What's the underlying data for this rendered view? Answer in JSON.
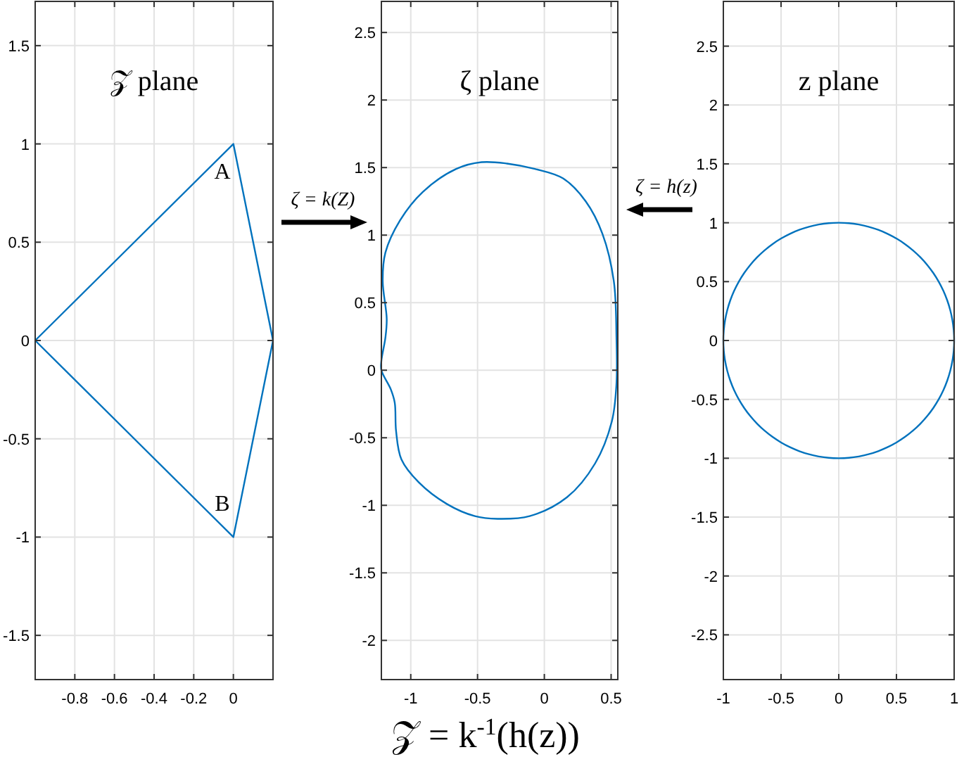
{
  "chart_data": [
    {
      "type": "line",
      "title": "𝒵 plane",
      "xlim": [
        -1,
        0.2
      ],
      "ylim": [
        -1.725,
        1.725
      ],
      "xticks": [
        -0.8,
        -0.6,
        -0.4,
        -0.2,
        0
      ],
      "yticks": [
        -1.5,
        -1,
        -0.5,
        0,
        0.5,
        1,
        1.5
      ],
      "grid": true,
      "annotations": [
        "A",
        "B",
        "ζ = k(Z)"
      ]
    },
    {
      "type": "line",
      "title": "ζ plane",
      "xlabel": "𝒵 = k$^{-1}$(h(z))",
      "xlim": [
        -1.22,
        0.55
      ],
      "ylim": [
        -2.29,
        2.73
      ],
      "xticks": [
        -1,
        -0.5,
        0,
        0.5
      ],
      "yticks": [
        -2,
        -1.5,
        -1,
        -0.5,
        0,
        0.5,
        1,
        1.5,
        2,
        2.5
      ],
      "grid": true
    },
    {
      "type": "line",
      "title": "z plane",
      "xlim": [
        -1,
        1
      ],
      "ylim": [
        -2.88,
        2.88
      ],
      "xticks": [
        -1,
        -0.5,
        0,
        0.5,
        1
      ],
      "yticks": [
        -2.5,
        -2,
        -1.5,
        -1,
        -0.5,
        0,
        0.5,
        1,
        1.5,
        2,
        2.5
      ],
      "grid": true,
      "annotations": [
        "ζ = h(z)"
      ]
    }
  ]
}
